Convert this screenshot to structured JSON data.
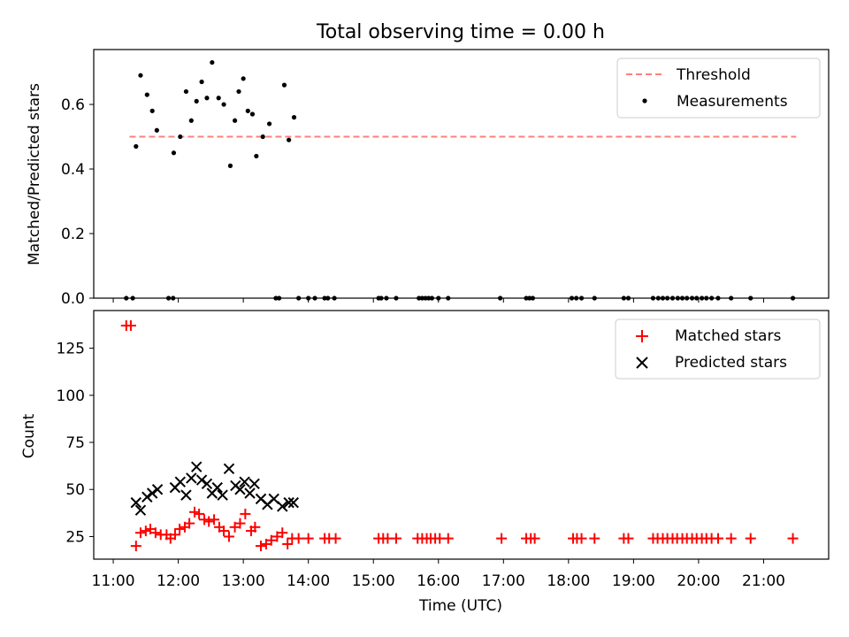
{
  "figure": {
    "title": "Total observing time = 0.00 h"
  },
  "chart_data": [
    {
      "type": "scatter",
      "ylabel": "Matched/Predicted stars",
      "xlabel": "",
      "ylim": [
        0,
        0.77
      ],
      "yticks": [
        0.0,
        0.2,
        0.4,
        0.6
      ],
      "ytick_labels": [
        "0.0",
        "0.2",
        "0.4",
        "0.6"
      ],
      "x_unit": "hours UTC",
      "xlim": [
        10.7,
        22.0
      ],
      "threshold": {
        "name": "Threshold",
        "value": 0.5,
        "x": [
          11.25,
          21.5
        ],
        "color": "#ff7f7f"
      },
      "legend": {
        "location": "upper right",
        "entries": [
          "Threshold",
          "Measurements"
        ]
      },
      "series": [
        {
          "name": "Measurements",
          "color": "#000000",
          "x": [
            11.35,
            11.42,
            11.52,
            11.6,
            11.67,
            11.93,
            12.03,
            12.12,
            12.2,
            12.28,
            12.36,
            12.44,
            12.52,
            12.62,
            12.7,
            12.8,
            12.87,
            12.93,
            13.0,
            13.07,
            13.14,
            13.2,
            13.3,
            13.4,
            13.5,
            13.63,
            13.7,
            13.78,
            11.2,
            11.3,
            11.85,
            11.92,
            13.55,
            13.85,
            14.0,
            14.1,
            14.25,
            14.3,
            14.4,
            15.08,
            15.12,
            15.2,
            15.35,
            15.7,
            15.75,
            15.8,
            15.85,
            15.9,
            16.0,
            16.15,
            16.95,
            17.35,
            17.4,
            17.45,
            18.05,
            18.12,
            18.2,
            18.4,
            18.85,
            18.92,
            19.3,
            19.38,
            19.45,
            19.52,
            19.6,
            19.68,
            19.75,
            19.82,
            19.9,
            19.97,
            20.05,
            20.12,
            20.2,
            20.3,
            20.5,
            20.8,
            21.45
          ],
          "y": [
            0.47,
            0.69,
            0.63,
            0.58,
            0.52,
            0.45,
            0.5,
            0.64,
            0.55,
            0.61,
            0.67,
            0.62,
            0.73,
            0.62,
            0.6,
            0.41,
            0.55,
            0.64,
            0.68,
            0.58,
            0.57,
            0.44,
            0.5,
            0.54,
            0.0,
            0.66,
            0.49,
            0.56,
            0.0,
            0.0,
            0.0,
            0.0,
            0.0,
            0.0,
            0.0,
            0.0,
            0.0,
            0.0,
            0.0,
            0.0,
            0.0,
            0.0,
            0.0,
            0.0,
            0.0,
            0.0,
            0.0,
            0.0,
            0.0,
            0.0,
            0.0,
            0.0,
            0.0,
            0.0,
            0.0,
            0.0,
            0.0,
            0.0,
            0.0,
            0.0,
            0.0,
            0.0,
            0.0,
            0.0,
            0.0,
            0.0,
            0.0,
            0.0,
            0.0,
            0.0,
            0.0,
            0.0,
            0.0,
            0.0,
            0.0,
            0.0,
            0.0
          ]
        }
      ]
    },
    {
      "type": "scatter",
      "ylabel": "Count",
      "xlabel": "Time (UTC)",
      "ylim": [
        13,
        145
      ],
      "yticks": [
        25,
        50,
        75,
        100,
        125
      ],
      "ytick_labels": [
        "25",
        "50",
        "75",
        "100",
        "125"
      ],
      "x_unit": "hours UTC",
      "xlim": [
        10.7,
        22.0
      ],
      "xticks": [
        11,
        12,
        13,
        14,
        15,
        16,
        17,
        18,
        19,
        20,
        21
      ],
      "xtick_labels": [
        "11:00",
        "12:00",
        "13:00",
        "14:00",
        "15:00",
        "16:00",
        "17:00",
        "18:00",
        "19:00",
        "20:00",
        "21:00"
      ],
      "legend": {
        "location": "upper right",
        "entries": [
          "Matched stars",
          "Predicted stars"
        ]
      },
      "series": [
        {
          "name": "Matched stars",
          "marker": "plus",
          "color": "#ff0000",
          "x": [
            11.2,
            11.27,
            11.35,
            11.42,
            11.5,
            11.57,
            11.65,
            11.73,
            11.82,
            11.88,
            11.95,
            12.02,
            12.1,
            12.17,
            12.25,
            12.32,
            12.4,
            12.47,
            12.55,
            12.63,
            12.7,
            12.78,
            12.87,
            12.95,
            13.03,
            13.12,
            13.18,
            13.27,
            13.35,
            13.43,
            13.52,
            13.6,
            13.68,
            13.75,
            13.85,
            14.0,
            14.25,
            14.32,
            14.42,
            15.08,
            15.15,
            15.22,
            15.35,
            15.68,
            15.75,
            15.82,
            15.88,
            15.95,
            16.02,
            16.15,
            16.97,
            17.35,
            17.42,
            17.48,
            18.07,
            18.13,
            18.2,
            18.4,
            18.85,
            18.92,
            19.3,
            19.37,
            19.45,
            19.52,
            19.6,
            19.67,
            19.75,
            19.82,
            19.9,
            19.97,
            20.05,
            20.12,
            20.2,
            20.3,
            20.5,
            20.8,
            21.45
          ],
          "y": [
            137,
            137,
            20,
            27,
            28,
            29,
            27,
            26,
            26,
            24,
            26,
            29,
            30,
            32,
            38,
            37,
            34,
            33,
            34,
            30,
            28,
            25,
            30,
            32,
            37,
            28,
            30,
            20,
            21,
            23,
            25,
            27,
            21,
            24,
            24,
            24,
            24,
            24,
            24,
            24,
            24,
            24,
            24,
            24,
            24,
            24,
            24,
            24,
            24,
            24,
            24,
            24,
            24,
            24,
            24,
            24,
            24,
            24,
            24,
            24,
            24,
            24,
            24,
            24,
            24,
            24,
            24,
            24,
            24,
            24,
            24,
            24,
            24,
            24,
            24,
            24,
            24
          ]
        },
        {
          "name": "Predicted stars",
          "marker": "x",
          "color": "#000000",
          "x": [
            11.35,
            11.42,
            11.52,
            11.6,
            11.68,
            11.95,
            12.03,
            12.12,
            12.2,
            12.28,
            12.36,
            12.44,
            12.52,
            12.6,
            12.68,
            12.78,
            12.88,
            12.95,
            13.02,
            13.1,
            13.17,
            13.27,
            13.37,
            13.47,
            13.6,
            13.7,
            13.77
          ],
          "y": [
            43,
            39,
            46,
            48,
            50,
            51,
            54,
            47,
            56,
            62,
            55,
            53,
            48,
            51,
            47,
            61,
            52,
            50,
            54,
            48,
            53,
            45,
            42,
            45,
            41,
            43,
            43
          ]
        }
      ]
    }
  ]
}
